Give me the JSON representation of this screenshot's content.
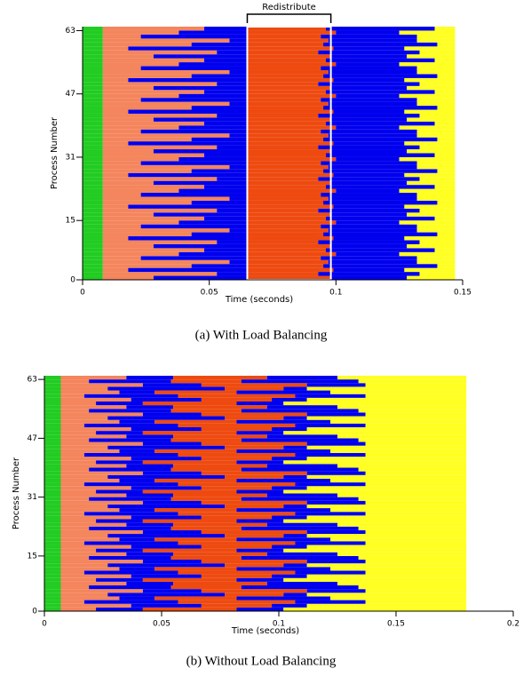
{
  "chart_data": [
    {
      "type": "timeline",
      "caption": "(a) With Load Balancing",
      "xlabel": "Time (seconds)",
      "ylabel": "Process Number",
      "xlim": [
        0,
        0.15
      ],
      "xticks": [
        0,
        0.05,
        0.1,
        0.15
      ],
      "ylim": [
        0,
        64
      ],
      "yticks": [
        0,
        15,
        31,
        47,
        63
      ],
      "annotation": {
        "text": "Redistribute",
        "xrange": [
          0.065,
          0.098
        ]
      },
      "series": [
        {
          "color": "#22cc22",
          "values": [
            0.008,
            0.008,
            0.008,
            0.008,
            0.008,
            0.008,
            0.008,
            0.008,
            0.008,
            0.008,
            0.008,
            0.008,
            0.008,
            0.008,
            0.008,
            0.008,
            0.008,
            0.008,
            0.008,
            0.008,
            0.008,
            0.008,
            0.008,
            0.008,
            0.008,
            0.008,
            0.008,
            0.008,
            0.008,
            0.008,
            0.008,
            0.008,
            0.008,
            0.008,
            0.008,
            0.008,
            0.008,
            0.008,
            0.008,
            0.008,
            0.008,
            0.008,
            0.008,
            0.008,
            0.008,
            0.008,
            0.008,
            0.008,
            0.008,
            0.008,
            0.008,
            0.008,
            0.008,
            0.008,
            0.008,
            0.008,
            0.008,
            0.008,
            0.008,
            0.008,
            0.008,
            0.008,
            0.008,
            0.008
          ]
        },
        {
          "color": "#f4855c",
          "values": [
            0.02,
            0.045,
            0.01,
            0.035,
            0.05,
            0.015,
            0.03,
            0.04,
            0.02,
            0.045,
            0.01,
            0.035,
            0.05,
            0.015,
            0.03,
            0.04,
            0.02,
            0.045,
            0.01,
            0.035,
            0.05,
            0.015,
            0.03,
            0.04,
            0.02,
            0.045,
            0.01,
            0.035,
            0.05,
            0.015,
            0.03,
            0.04,
            0.02,
            0.045,
            0.01,
            0.035,
            0.05,
            0.015,
            0.03,
            0.04,
            0.02,
            0.045,
            0.01,
            0.035,
            0.05,
            0.015,
            0.03,
            0.04,
            0.02,
            0.045,
            0.01,
            0.035,
            0.05,
            0.015,
            0.03,
            0.04,
            0.02,
            0.045,
            0.01,
            0.035,
            0.05,
            0.015,
            0.03,
            0.04
          ]
        },
        {
          "color": "#0000ee",
          "values": [
            0.037,
            0.012,
            0.047,
            0.022,
            0.007,
            0.042,
            0.027,
            0.017,
            0.037,
            0.012,
            0.047,
            0.022,
            0.007,
            0.042,
            0.027,
            0.017,
            0.037,
            0.012,
            0.047,
            0.022,
            0.007,
            0.042,
            0.027,
            0.017,
            0.037,
            0.012,
            0.047,
            0.022,
            0.007,
            0.042,
            0.027,
            0.017,
            0.037,
            0.012,
            0.047,
            0.022,
            0.007,
            0.042,
            0.027,
            0.017,
            0.037,
            0.012,
            0.047,
            0.022,
            0.007,
            0.042,
            0.027,
            0.017,
            0.037,
            0.012,
            0.047,
            0.022,
            0.007,
            0.042,
            0.027,
            0.017,
            0.037,
            0.012,
            0.047,
            0.022,
            0.007,
            0.042,
            0.027,
            0.017
          ]
        },
        {
          "color": "#ee4a10",
          "values": [
            0.033,
            0.028,
            0.034,
            0.03,
            0.032,
            0.029,
            0.035,
            0.031,
            0.033,
            0.028,
            0.034,
            0.03,
            0.032,
            0.029,
            0.035,
            0.031,
            0.033,
            0.028,
            0.034,
            0.03,
            0.032,
            0.029,
            0.035,
            0.031,
            0.033,
            0.028,
            0.034,
            0.03,
            0.032,
            0.029,
            0.035,
            0.031,
            0.033,
            0.028,
            0.034,
            0.03,
            0.032,
            0.029,
            0.035,
            0.031,
            0.033,
            0.028,
            0.034,
            0.03,
            0.032,
            0.029,
            0.035,
            0.031,
            0.033,
            0.028,
            0.034,
            0.03,
            0.032,
            0.029,
            0.035,
            0.031,
            0.033,
            0.028,
            0.034,
            0.03,
            0.032,
            0.029,
            0.035,
            0.031
          ]
        },
        {
          "color": "#0000ee",
          "values": [
            0.03,
            0.04,
            0.028,
            0.045,
            0.035,
            0.038,
            0.025,
            0.043,
            0.03,
            0.04,
            0.028,
            0.045,
            0.035,
            0.038,
            0.025,
            0.043,
            0.03,
            0.04,
            0.028,
            0.045,
            0.035,
            0.038,
            0.025,
            0.043,
            0.03,
            0.04,
            0.028,
            0.045,
            0.035,
            0.038,
            0.025,
            0.043,
            0.03,
            0.04,
            0.028,
            0.045,
            0.035,
            0.038,
            0.025,
            0.043,
            0.03,
            0.04,
            0.028,
            0.045,
            0.035,
            0.038,
            0.025,
            0.043,
            0.03,
            0.04,
            0.028,
            0.045,
            0.035,
            0.038,
            0.025,
            0.043,
            0.03,
            0.04,
            0.028,
            0.045,
            0.035,
            0.038,
            0.025,
            0.043
          ]
        },
        {
          "color": "#ffff22",
          "values": [
            0.019,
            0.014,
            0.02,
            0.007,
            0.015,
            0.015,
            0.022,
            0.008,
            0.019,
            0.014,
            0.02,
            0.007,
            0.015,
            0.015,
            0.022,
            0.008,
            0.019,
            0.014,
            0.02,
            0.007,
            0.015,
            0.015,
            0.022,
            0.008,
            0.019,
            0.014,
            0.02,
            0.007,
            0.015,
            0.015,
            0.022,
            0.008,
            0.019,
            0.014,
            0.02,
            0.007,
            0.015,
            0.015,
            0.022,
            0.008,
            0.019,
            0.014,
            0.02,
            0.007,
            0.015,
            0.015,
            0.022,
            0.008,
            0.019,
            0.014,
            0.02,
            0.007,
            0.015,
            0.015,
            0.022,
            0.008,
            0.019,
            0.014,
            0.02,
            0.007,
            0.015,
            0.015,
            0.022,
            0.008
          ]
        }
      ]
    },
    {
      "type": "timeline",
      "caption": "(b) Without Load Balancing",
      "xlabel": "Time (seconds)",
      "ylabel": "Process Number",
      "xlim": [
        0,
        0.2
      ],
      "xticks": [
        0,
        0.05,
        0.1,
        0.15,
        0.2
      ],
      "ylim": [
        0,
        64
      ],
      "yticks": [
        0,
        15,
        31,
        47,
        63
      ],
      "series": [
        {
          "color": "#22cc22",
          "values": [
            0.007,
            0.007,
            0.007,
            0.007,
            0.007,
            0.007,
            0.007,
            0.007,
            0.007,
            0.007,
            0.007,
            0.007,
            0.007,
            0.007,
            0.007,
            0.007,
            0.007,
            0.007,
            0.007,
            0.007,
            0.007,
            0.007,
            0.007,
            0.007,
            0.007,
            0.007,
            0.007,
            0.007,
            0.007,
            0.007,
            0.007,
            0.007,
            0.007,
            0.007,
            0.007,
            0.007,
            0.007,
            0.007,
            0.007,
            0.007,
            0.007,
            0.007,
            0.007,
            0.007,
            0.007,
            0.007,
            0.007,
            0.007,
            0.007,
            0.007,
            0.007,
            0.007,
            0.007,
            0.007,
            0.007,
            0.007,
            0.007,
            0.007,
            0.007,
            0.007,
            0.007,
            0.007,
            0.007,
            0.007
          ]
        },
        {
          "color": "#f4855c",
          "values": [
            0.015,
            0.03,
            0.01,
            0.025,
            0.02,
            0.035,
            0.012,
            0.028,
            0.015,
            0.03,
            0.01,
            0.025,
            0.02,
            0.035,
            0.012,
            0.028,
            0.015,
            0.03,
            0.01,
            0.025,
            0.02,
            0.035,
            0.012,
            0.028,
            0.015,
            0.03,
            0.01,
            0.025,
            0.02,
            0.035,
            0.012,
            0.028,
            0.015,
            0.03,
            0.01,
            0.025,
            0.02,
            0.035,
            0.012,
            0.028,
            0.015,
            0.03,
            0.01,
            0.025,
            0.02,
            0.035,
            0.012,
            0.028,
            0.015,
            0.03,
            0.01,
            0.025,
            0.02,
            0.035,
            0.012,
            0.028,
            0.015,
            0.03,
            0.01,
            0.025,
            0.02,
            0.035,
            0.012,
            0.028
          ]
        },
        {
          "color": "#0000ee",
          "values": [
            0.02,
            0.03,
            0.04,
            0.015,
            0.05,
            0.025,
            0.035,
            0.02,
            0.02,
            0.03,
            0.04,
            0.015,
            0.05,
            0.025,
            0.035,
            0.02,
            0.02,
            0.03,
            0.04,
            0.015,
            0.05,
            0.025,
            0.035,
            0.02,
            0.02,
            0.03,
            0.04,
            0.015,
            0.05,
            0.025,
            0.035,
            0.02,
            0.02,
            0.03,
            0.04,
            0.015,
            0.05,
            0.025,
            0.035,
            0.02,
            0.02,
            0.03,
            0.04,
            0.015,
            0.05,
            0.025,
            0.035,
            0.02,
            0.02,
            0.03,
            0.04,
            0.015,
            0.05,
            0.025,
            0.035,
            0.02,
            0.02,
            0.03,
            0.04,
            0.015,
            0.05,
            0.025,
            0.035,
            0.02
          ]
        },
        {
          "color": "#ee4a10",
          "values": [
            0.04,
            0.03,
            0.05,
            0.035,
            0.025,
            0.045,
            0.03,
            0.04,
            0.04,
            0.03,
            0.05,
            0.035,
            0.025,
            0.045,
            0.03,
            0.04,
            0.04,
            0.03,
            0.05,
            0.035,
            0.025,
            0.045,
            0.03,
            0.04,
            0.04,
            0.03,
            0.05,
            0.035,
            0.025,
            0.045,
            0.03,
            0.04,
            0.04,
            0.03,
            0.05,
            0.035,
            0.025,
            0.045,
            0.03,
            0.04,
            0.04,
            0.03,
            0.05,
            0.035,
            0.025,
            0.045,
            0.03,
            0.04,
            0.04,
            0.03,
            0.05,
            0.035,
            0.025,
            0.045,
            0.03,
            0.04,
            0.04,
            0.03,
            0.05,
            0.035,
            0.025,
            0.045,
            0.03,
            0.04
          ]
        },
        {
          "color": "#0000ee",
          "values": [
            0.02,
            0.015,
            0.03,
            0.04,
            0.01,
            0.025,
            0.05,
            0.03,
            0.02,
            0.015,
            0.03,
            0.04,
            0.01,
            0.025,
            0.05,
            0.03,
            0.02,
            0.015,
            0.03,
            0.04,
            0.01,
            0.025,
            0.05,
            0.03,
            0.02,
            0.015,
            0.03,
            0.04,
            0.01,
            0.025,
            0.05,
            0.03,
            0.02,
            0.015,
            0.03,
            0.04,
            0.01,
            0.025,
            0.05,
            0.03,
            0.02,
            0.015,
            0.03,
            0.04,
            0.01,
            0.025,
            0.05,
            0.03,
            0.02,
            0.015,
            0.03,
            0.04,
            0.01,
            0.025,
            0.05,
            0.03,
            0.02,
            0.015,
            0.03,
            0.04,
            0.01,
            0.025,
            0.05,
            0.03
          ]
        },
        {
          "color": "#ffff22",
          "values": [
            0.078,
            0.068,
            0.043,
            0.058,
            0.068,
            0.043,
            0.046,
            0.055,
            0.078,
            0.068,
            0.043,
            0.058,
            0.068,
            0.043,
            0.046,
            0.055,
            0.078,
            0.068,
            0.043,
            0.058,
            0.068,
            0.043,
            0.046,
            0.055,
            0.078,
            0.068,
            0.043,
            0.058,
            0.068,
            0.043,
            0.046,
            0.055,
            0.078,
            0.068,
            0.043,
            0.058,
            0.068,
            0.043,
            0.046,
            0.055,
            0.078,
            0.068,
            0.043,
            0.058,
            0.068,
            0.043,
            0.046,
            0.055,
            0.078,
            0.068,
            0.043,
            0.058,
            0.068,
            0.043,
            0.046,
            0.055,
            0.078,
            0.068,
            0.043,
            0.058,
            0.068,
            0.043,
            0.046,
            0.055
          ]
        }
      ]
    }
  ]
}
